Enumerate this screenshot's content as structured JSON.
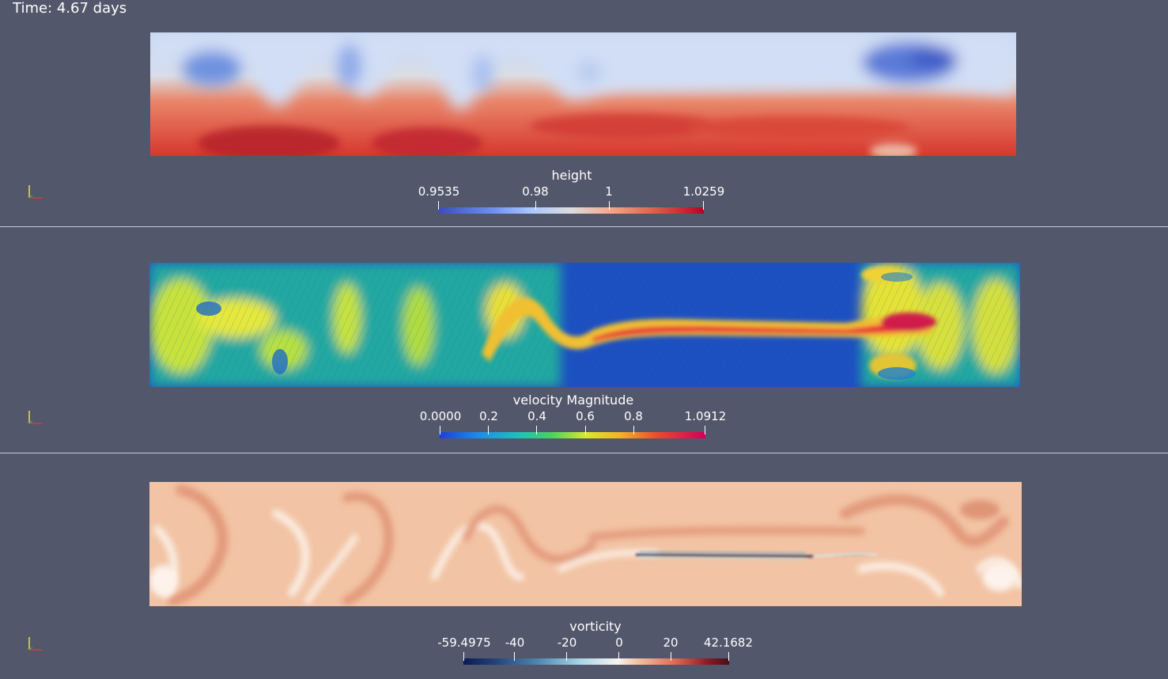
{
  "time_label": "Time: 4.67 days",
  "panels": [
    {
      "variable": "height",
      "colorbar_title": "height",
      "colormap": "cool-warm",
      "range": [
        0.9535,
        1.0259
      ],
      "tick_labels": [
        "0.9535",
        "0.98",
        "1",
        "1.0259"
      ],
      "tick_values": [
        0.9535,
        0.98,
        1,
        1.0259
      ]
    },
    {
      "variable": "velocity",
      "colorbar_title": "velocity Magnitude",
      "colormap": "jet",
      "range": [
        0.0,
        1.0912
      ],
      "tick_labels": [
        "0.0000",
        "0.2",
        "0.4",
        "0.6",
        "0.8",
        "1.0912"
      ],
      "tick_values": [
        0,
        0.2,
        0.4,
        0.6,
        0.8,
        1.0912
      ]
    },
    {
      "variable": "vorticity",
      "colorbar_title": "vorticity",
      "colormap": "blue-white-red",
      "range": [
        -59.4975,
        42.1682
      ],
      "tick_labels": [
        "-59.4975",
        "-40",
        "-20",
        "0",
        "20",
        "42.1682"
      ],
      "tick_values": [
        -59.4975,
        -40,
        -20,
        0,
        20,
        42.1682
      ]
    }
  ],
  "colors": {
    "background": "#52576b",
    "height_low": "#3b4cc0",
    "height_mid": "#dddcdc",
    "height_high": "#b40426",
    "velocity_low": "#1a3fbf",
    "velocity_high": "#d0005a",
    "vorticity_background": "#f2c3a4"
  },
  "orientation_axes_icon": "xyz-axes-icon"
}
